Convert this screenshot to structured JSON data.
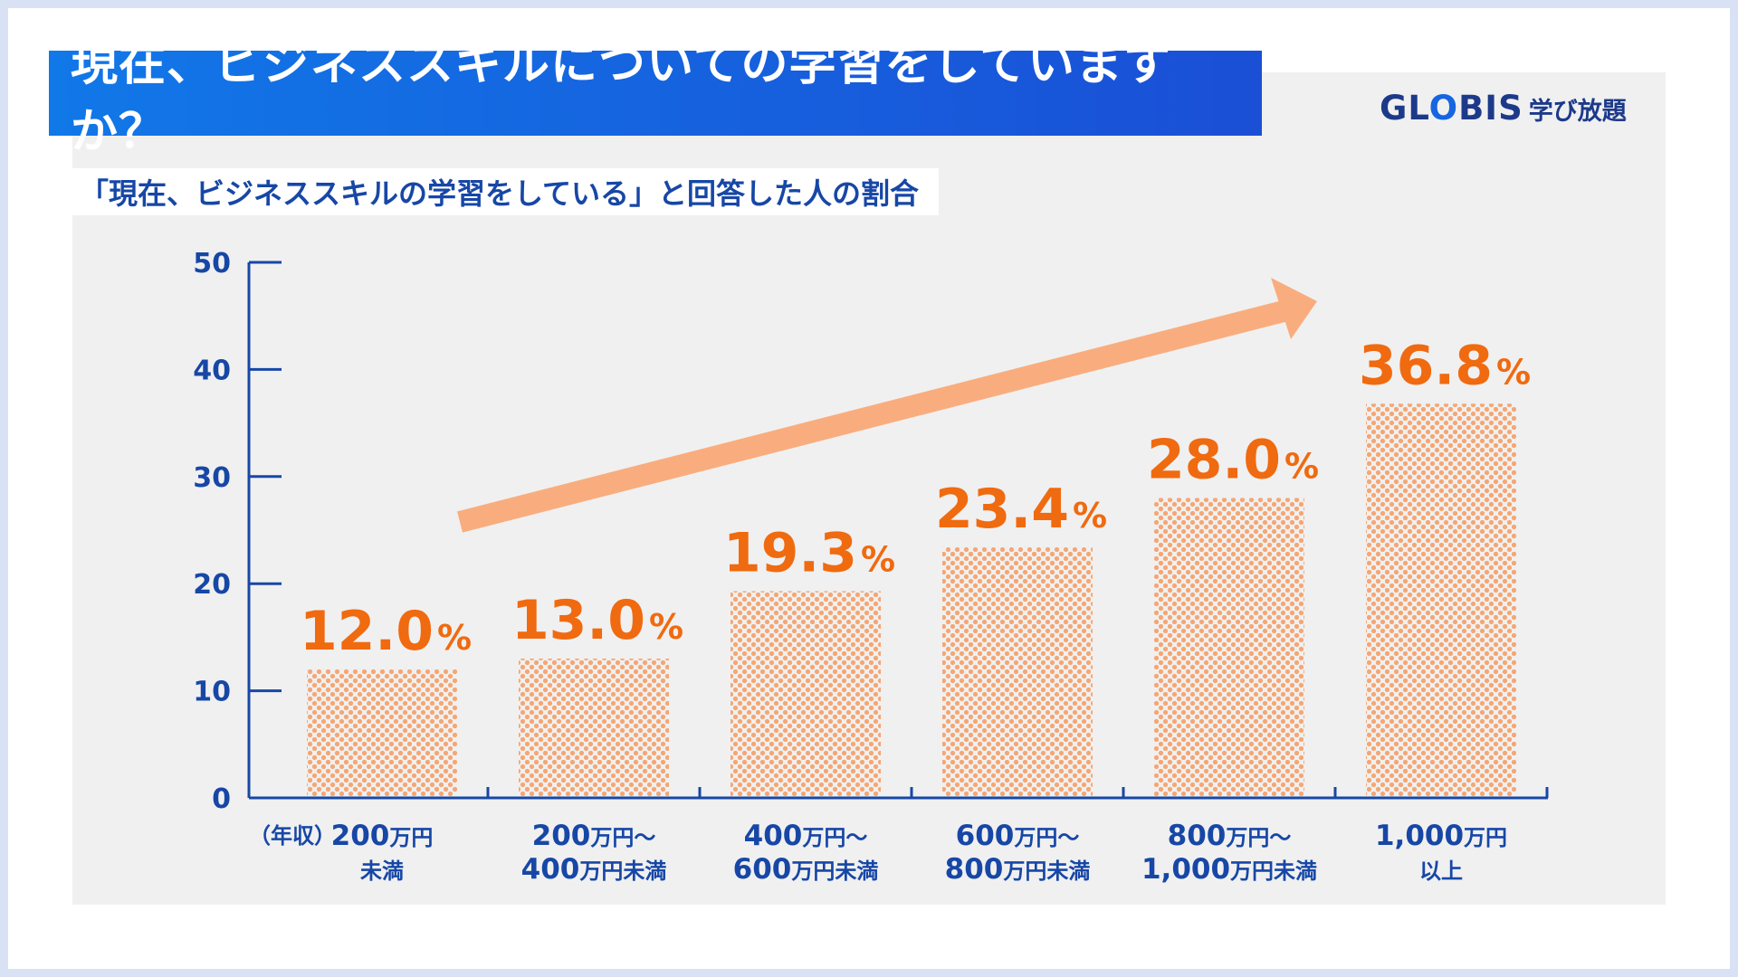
{
  "title": "現在、ビジネススキルについての学習をしていますか？",
  "logo": {
    "brand_start": "GL",
    "brand_o": "O",
    "brand_end": "BIS",
    "sub": "学び放題"
  },
  "subtitle": "「現在、ビジネススキルの学習をしている」と回答した人の割合",
  "x_prefix": "（年収）",
  "colors": {
    "title_bg": "#1a5fe0",
    "axis": "#1747a6",
    "bar_dots": "#f5a673",
    "value_text": "#f06a10",
    "arrow": "#f9ad7e"
  },
  "chart_data": {
    "type": "bar",
    "title": "「現在、ビジネススキルの学習をしている」と回答した人の割合",
    "xlabel": "年収",
    "ylabel": "",
    "ylim": [
      0,
      50
    ],
    "yticks": [
      0,
      10,
      20,
      30,
      40,
      50
    ],
    "categories": [
      "200万円未満",
      "200万円〜400万円未満",
      "400万円〜600万円未満",
      "600万円〜800万円未満",
      "800万円〜1,000万円未満",
      "1,000万円以上"
    ],
    "category_lines": [
      [
        {
          "t": "200",
          "u": "万円"
        },
        {
          "t": "未満",
          "u": ""
        }
      ],
      [
        {
          "t": "200",
          "u": "万円〜"
        },
        {
          "t": "400",
          "u": "万円未満"
        }
      ],
      [
        {
          "t": "400",
          "u": "万円〜"
        },
        {
          "t": "600",
          "u": "万円未満"
        }
      ],
      [
        {
          "t": "600",
          "u": "万円〜"
        },
        {
          "t": "800",
          "u": "万円未満"
        }
      ],
      [
        {
          "t": "800",
          "u": "万円〜"
        },
        {
          "t": "1,000",
          "u": "万円未満"
        }
      ],
      [
        {
          "t": "1,000",
          "u": "万円"
        },
        {
          "t": "以上",
          "u": ""
        }
      ]
    ],
    "values": [
      12.0,
      13.0,
      19.3,
      23.4,
      28.0,
      36.8
    ],
    "value_labels": [
      "12.0",
      "13.0",
      "19.3",
      "23.4",
      "28.0",
      "36.8"
    ],
    "unit": "%",
    "annotation": "upward trend arrow"
  }
}
